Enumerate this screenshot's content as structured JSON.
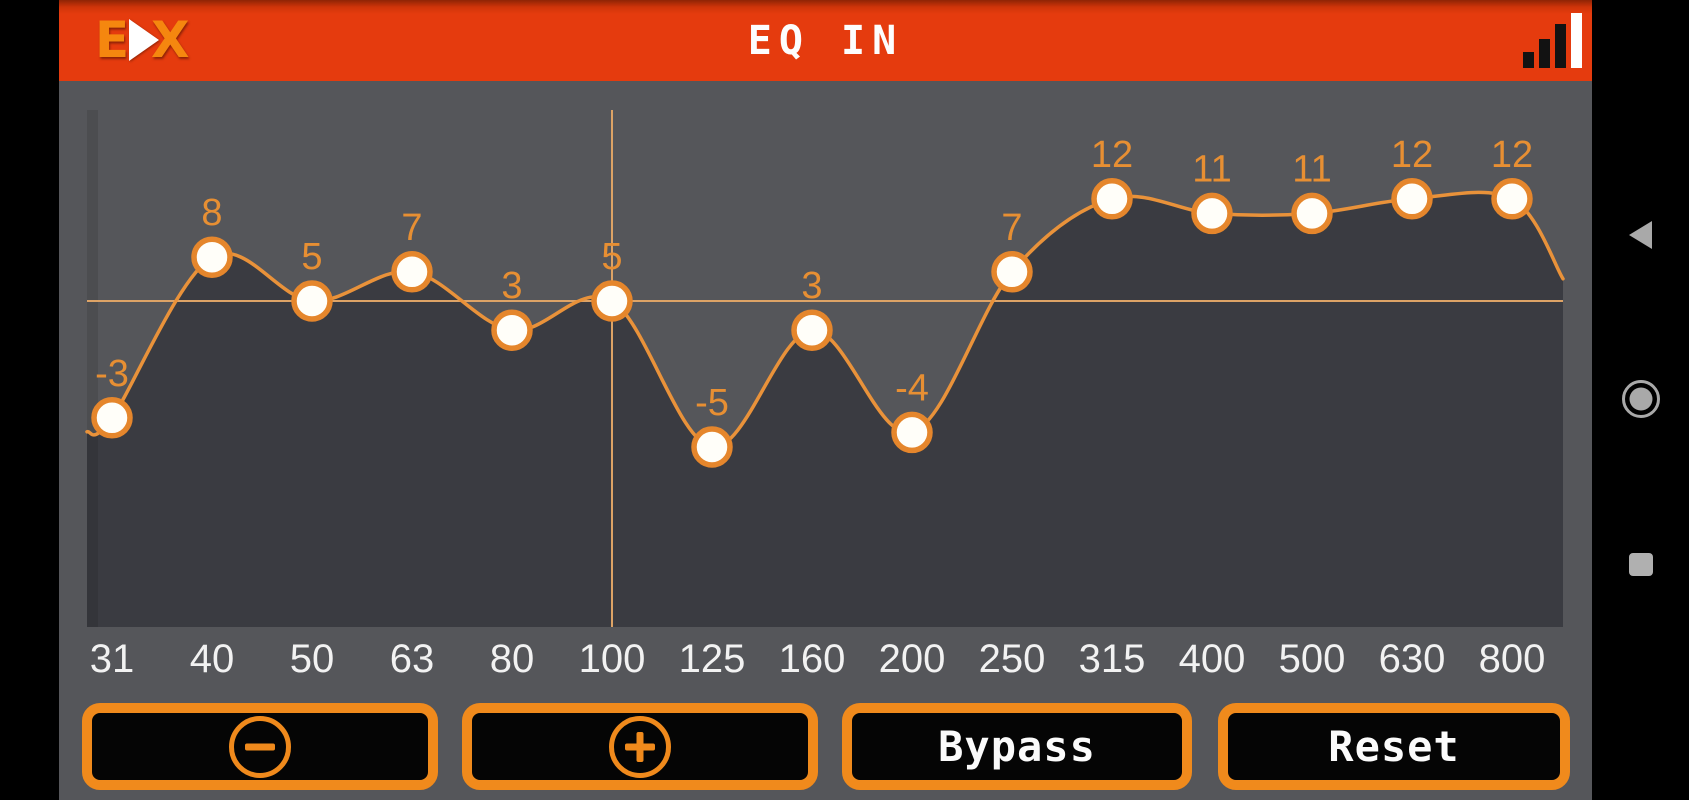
{
  "header": {
    "logo": {
      "letter_left": "E",
      "letter_right": "X"
    },
    "title": "EQ IN",
    "status_icon": "signal-strength"
  },
  "chart_data": {
    "type": "line",
    "title": "EQ IN",
    "categories": [
      "31",
      "40",
      "50",
      "63",
      "80",
      "100",
      "125",
      "160",
      "200",
      "250",
      "315",
      "400",
      "500",
      "630",
      "800"
    ],
    "values": [
      -3,
      8,
      5,
      7,
      3,
      5,
      -5,
      3,
      -4,
      7,
      12,
      11,
      11,
      12,
      12
    ],
    "point_labels": [
      "-3",
      "8",
      "5",
      "7",
      "3",
      "5",
      "-5",
      "3",
      "-4",
      "7",
      "12",
      "11",
      "11",
      "12",
      "12"
    ],
    "selected_index": 5,
    "selected_category": "100",
    "selected_value": 5,
    "ylim": [
      -18,
      18
    ],
    "grid": "crosshair-on-selected-point",
    "legend": "none",
    "xlabel": "",
    "ylabel": ""
  },
  "colors": {
    "header": "#e53b0e",
    "accent_curve": "#e9923a",
    "point_fill": "#fffef9",
    "point_border": "#e5862c",
    "under_curve_fill": "#3a3b41",
    "crosshair": "#dda366",
    "value_label": "#e78f33",
    "x_label": "#f2f2f2",
    "button_border": "#f08a1c"
  },
  "buttons": [
    {
      "name": "decrease",
      "icon": "minus"
    },
    {
      "name": "increase",
      "icon": "plus"
    },
    {
      "name": "bypass",
      "label": "Bypass"
    },
    {
      "name": "reset",
      "label": "Reset"
    }
  ],
  "navbar": {
    "icons": [
      "back",
      "home",
      "recents"
    ]
  }
}
